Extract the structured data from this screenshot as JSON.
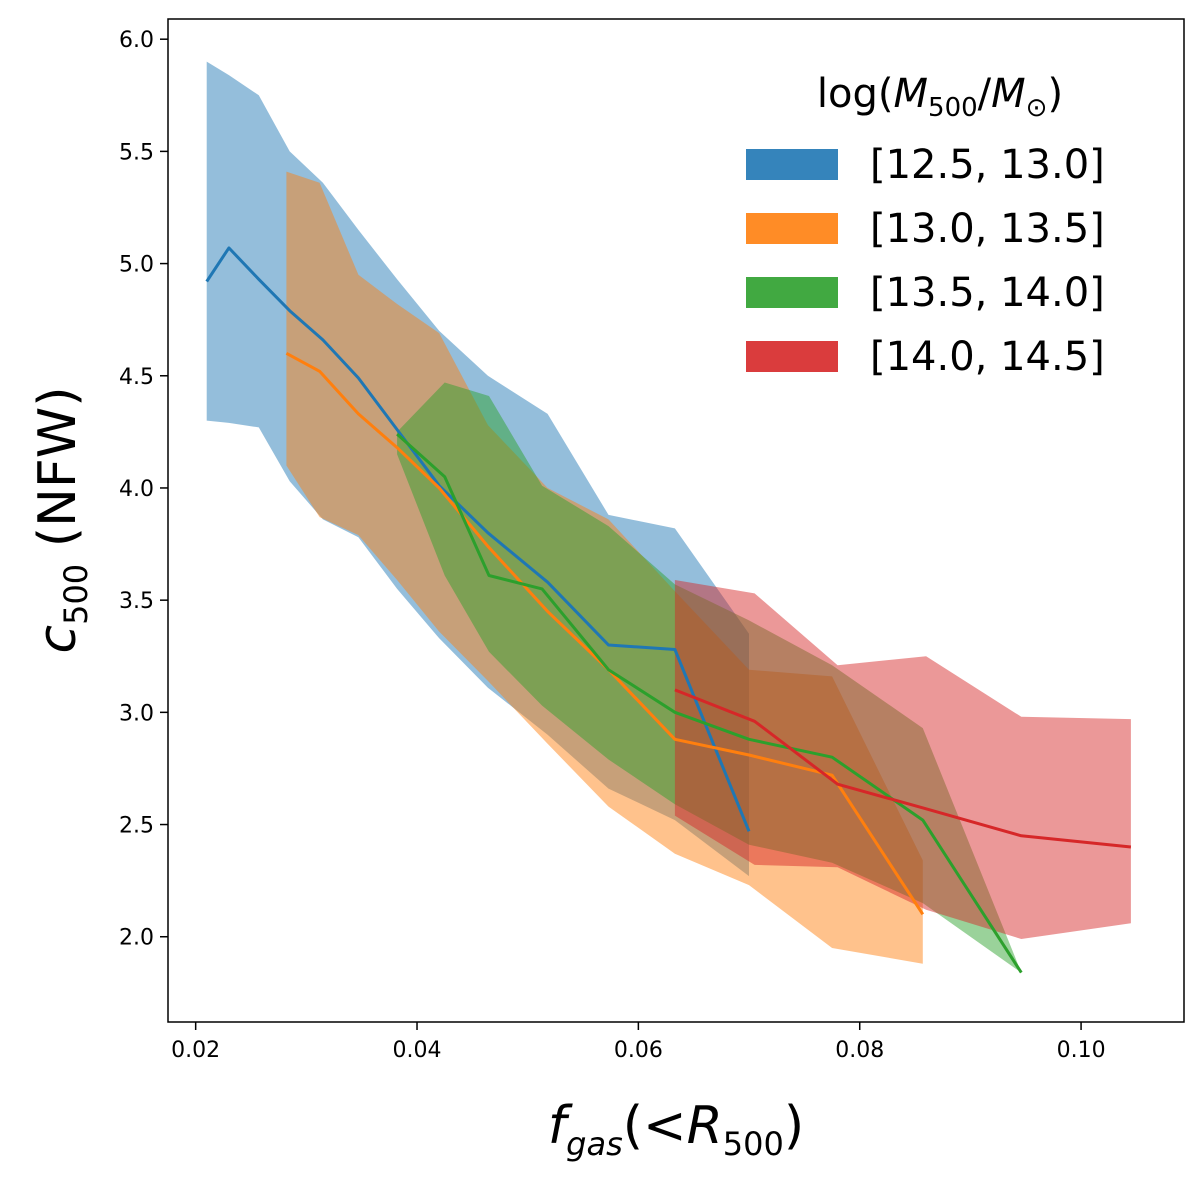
{
  "chart_data": {
    "type": "line",
    "title": "",
    "xlabel": "f_gas(<R_500)",
    "ylabel": "c_500 (NFW)",
    "xlim": [
      0.0175,
      0.1093
    ],
    "ylim": [
      1.62,
      6.09
    ],
    "x_ticks": [
      0.02,
      0.04,
      0.06,
      0.08,
      0.1
    ],
    "x_tick_labels": [
      "0.02",
      "0.04",
      "0.06",
      "0.08",
      "0.10"
    ],
    "y_ticks": [
      2.0,
      2.5,
      3.0,
      3.5,
      4.0,
      4.5,
      5.0,
      5.5,
      6.0
    ],
    "y_tick_labels": [
      "2.0",
      "2.5",
      "3.0",
      "3.5",
      "4.0",
      "4.5",
      "5.0",
      "5.5",
      "6.0"
    ],
    "grid": false,
    "legend": {
      "title_prefix": "log(",
      "title_M": "M",
      "title_sub1": "500",
      "title_slash": "/",
      "title_sub2": "⊙",
      "title_suffix": ")",
      "placement": "upper-right"
    },
    "series": [
      {
        "name": "[12.5, 13.0]",
        "color": "#1f77b4",
        "x": [
          0.021,
          0.023,
          0.0257,
          0.0285,
          0.0315,
          0.0347,
          0.0382,
          0.042,
          0.0464,
          0.0518,
          0.0573,
          0.0633,
          0.07
        ],
        "y": [
          4.92,
          5.07,
          4.93,
          4.79,
          4.66,
          4.49,
          4.26,
          4.01,
          3.8,
          3.58,
          3.3,
          3.28,
          2.47
        ],
        "upper": [
          5.9,
          5.84,
          5.75,
          5.5,
          5.36,
          5.15,
          4.93,
          4.7,
          4.5,
          4.33,
          3.88,
          3.82,
          3.35
        ],
        "lower": [
          4.3,
          4.29,
          4.27,
          4.03,
          3.86,
          3.78,
          3.55,
          3.33,
          3.11,
          2.9,
          2.66,
          2.52,
          2.27
        ]
      },
      {
        "name": "[13.0, 13.5]",
        "color": "#ff7f0e",
        "x": [
          0.0282,
          0.0312,
          0.0347,
          0.0382,
          0.042,
          0.0464,
          0.0518,
          0.0573,
          0.0633,
          0.07,
          0.0775,
          0.0857
        ],
        "y": [
          4.6,
          4.52,
          4.33,
          4.18,
          4.0,
          3.74,
          3.45,
          3.19,
          2.88,
          2.81,
          2.72,
          2.1
        ],
        "upper": [
          5.41,
          5.36,
          4.95,
          4.82,
          4.69,
          4.28,
          4.0,
          3.86,
          3.54,
          3.19,
          3.16,
          2.34
        ],
        "lower": [
          4.1,
          3.87,
          3.79,
          3.59,
          3.36,
          3.14,
          2.86,
          2.58,
          2.37,
          2.23,
          1.95,
          1.88
        ]
      },
      {
        "name": "[13.5, 14.0]",
        "color": "#2ca02c",
        "x": [
          0.0382,
          0.0425,
          0.0465,
          0.0513,
          0.0573,
          0.0633,
          0.07,
          0.0775,
          0.0857,
          0.0946
        ],
        "y": [
          4.24,
          4.05,
          3.61,
          3.55,
          3.19,
          3.0,
          2.88,
          2.8,
          2.52,
          1.84
        ],
        "upper": [
          4.25,
          4.47,
          4.41,
          4.01,
          3.83,
          3.57,
          3.41,
          3.21,
          2.93,
          1.84
        ],
        "lower": [
          4.15,
          3.61,
          3.27,
          3.03,
          2.79,
          2.59,
          2.41,
          2.33,
          2.15,
          1.84
        ]
      },
      {
        "name": "[14.0, 14.5]",
        "color": "#d62728",
        "x": [
          0.0633,
          0.0705,
          0.078,
          0.086,
          0.0946,
          0.1045
        ],
        "y": [
          3.1,
          2.96,
          2.68,
          2.57,
          2.45,
          2.4
        ],
        "upper": [
          3.59,
          3.53,
          3.21,
          3.25,
          2.98,
          2.97
        ],
        "lower": [
          2.54,
          2.32,
          2.31,
          2.12,
          1.99,
          2.06
        ]
      }
    ]
  }
}
